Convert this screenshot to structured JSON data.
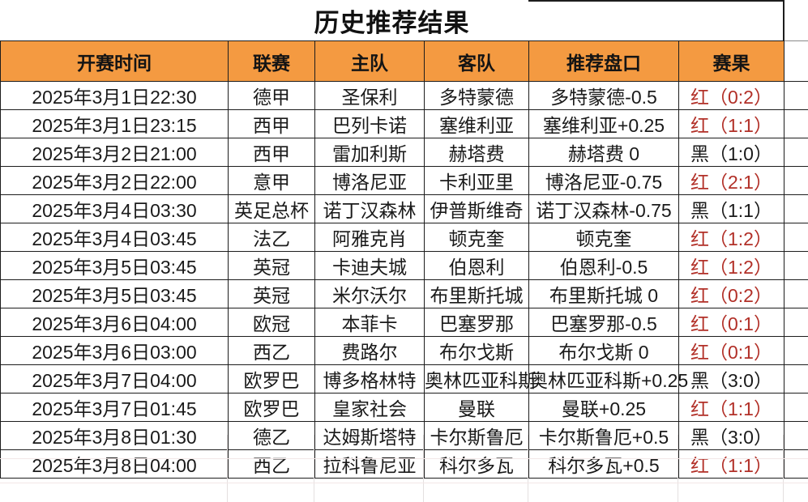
{
  "title": "历史推荐结果",
  "colors": {
    "header_bg": "#f49a41",
    "result_red": "#b23028",
    "result_black": "#1a1a1a"
  },
  "table": {
    "headers": [
      "开赛时间",
      "联赛",
      "主队",
      "客队",
      "推荐盘口",
      "赛果"
    ],
    "rows": [
      {
        "time": "2025年3月1日22:30",
        "league": "德甲",
        "home": "圣保利",
        "away": "多特蒙德",
        "handicap": "多特蒙德-0.5",
        "result": "红（0:2）",
        "result_color": "red"
      },
      {
        "time": "2025年3月1日23:15",
        "league": "西甲",
        "home": "巴列卡诺",
        "away": "塞维利亚",
        "handicap": "塞维利亚+0.25",
        "result": "红（1:1）",
        "result_color": "red"
      },
      {
        "time": "2025年3月2日21:00",
        "league": "西甲",
        "home": "雷加利斯",
        "away": "赫塔费",
        "handicap": "赫塔费 0",
        "result": "黑（1:0）",
        "result_color": "black"
      },
      {
        "time": "2025年3月2日22:00",
        "league": "意甲",
        "home": "博洛尼亚",
        "away": "卡利亚里",
        "handicap": "博洛尼亚-0.75",
        "result": "红（2:1）",
        "result_color": "red"
      },
      {
        "time": "2025年3月4日03:30",
        "league": "英足总杯",
        "home": "诺丁汉森林",
        "away": "伊普斯维奇",
        "handicap": "诺丁汉森林-0.75",
        "result": "黑（1:1）",
        "result_color": "black"
      },
      {
        "time": "2025年3月4日03:45",
        "league": "法乙",
        "home": "阿雅克肖",
        "away": "顿克奎",
        "handicap": "顿克奎",
        "result": "红（1:2）",
        "result_color": "red"
      },
      {
        "time": "2025年3月5日03:45",
        "league": "英冠",
        "home": "卡迪夫城",
        "away": "伯恩利",
        "handicap": "伯恩利-0.5",
        "result": "红（1:2）",
        "result_color": "red"
      },
      {
        "time": "2025年3月5日03:45",
        "league": "英冠",
        "home": "米尔沃尔",
        "away": "布里斯托城",
        "handicap": "布里斯托城 0",
        "result": "红（0:2）",
        "result_color": "red"
      },
      {
        "time": "2025年3月6日04:00",
        "league": "欧冠",
        "home": "本菲卡",
        "away": "巴塞罗那",
        "handicap": "巴塞罗那-0.5",
        "result": "红（0:1）",
        "result_color": "red"
      },
      {
        "time": "2025年3月6日03:00",
        "league": "西乙",
        "home": "费路尔",
        "away": "布尔戈斯",
        "handicap": "布尔戈斯 0",
        "result": "红（0:1）",
        "result_color": "red"
      },
      {
        "time": "2025年3月7日04:00",
        "league": "欧罗巴",
        "home": "博多格林特",
        "away": "奥林匹亚科斯",
        "handicap": "奥林匹亚科斯+0.25",
        "result": "黑（3:0）",
        "result_color": "black"
      },
      {
        "time": "2025年3月7日01:45",
        "league": "欧罗巴",
        "home": "皇家社会",
        "away": "曼联",
        "handicap": "曼联+0.25",
        "result": "红（1:1）",
        "result_color": "red"
      },
      {
        "time": "2025年3月8日01:30",
        "league": "德乙",
        "home": "达姆斯塔特",
        "away": "卡尔斯鲁厄",
        "handicap": "卡尔斯鲁厄+0.5",
        "result": "黑（3:0）",
        "result_color": "black"
      },
      {
        "time": "2025年3月8日04:00",
        "league": "西乙",
        "home": "拉科鲁尼亚",
        "away": "科尔多瓦",
        "handicap": "科尔多瓦+0.5",
        "result": "红（1:1）",
        "result_color": "red"
      }
    ]
  }
}
